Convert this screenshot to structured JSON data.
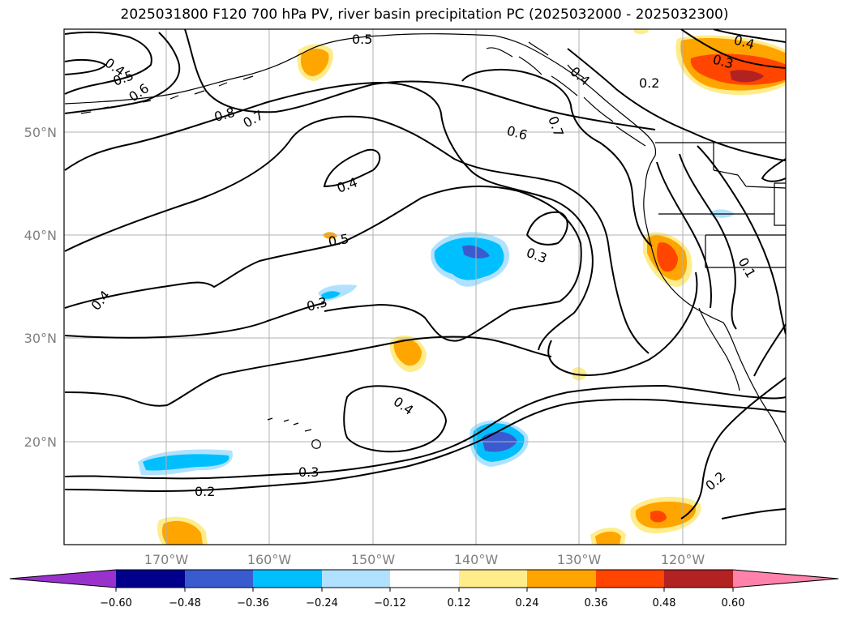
{
  "title": "2025031800 F120 700 hPa PV, river basin precipitation PC (2025032000 - 2025032300)",
  "map": {
    "lon_labels": [
      "170°W",
      "160°W",
      "150°W",
      "140°W",
      "130°W",
      "120°W"
    ],
    "lat_labels": [
      "50°N",
      "40°N",
      "30°N",
      "20°N"
    ],
    "pv_contour_labels": [
      "0.4",
      "0.5",
      "0.6",
      "0.8",
      "0.7",
      "0.5",
      "0.4",
      "0.6",
      "0.4",
      "0.5",
      "0.3",
      "0.3",
      "0.4",
      "0.3",
      "0.2",
      "0.2",
      "0.2",
      "0.3",
      "0.4",
      "0.1",
      "0.4",
      "0.7"
    ]
  },
  "colorbar": {
    "tick_labels": [
      "−0.60",
      "−0.48",
      "−0.36",
      "−0.24",
      "−0.12",
      "0.12",
      "0.24",
      "0.36",
      "0.48",
      "0.60"
    ],
    "colors": {
      "below": "#9932CC",
      "bins": [
        "#00008B",
        "#3A5BCF",
        "#00BFFF",
        "#B0E2FF",
        "#FFFFFF",
        "#FFEC8B",
        "#FFA500",
        "#FF4500",
        "#B22222"
      ],
      "above": "#FF82AB"
    }
  },
  "colors": {
    "strong_negative": "#3A5BCF",
    "negative": "#00BFFF",
    "weak_negative": "#B0E2FF",
    "weak_positive": "#FFEC8B",
    "positive": "#FFA500",
    "strong_positive": "#FF4500",
    "max_positive": "#B22222"
  }
}
